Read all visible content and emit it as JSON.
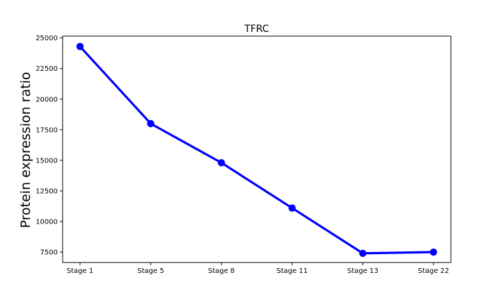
{
  "chart_data": {
    "type": "line",
    "title": "TFRC",
    "xlabel": "",
    "ylabel": "Protein expression ratio",
    "categories": [
      "Stage 1",
      "Stage 5",
      "Stage 8",
      "Stage 11",
      "Stage 13",
      "Stage 22"
    ],
    "series": [
      {
        "values": [
          24300,
          18000,
          14800,
          11100,
          7400,
          7500
        ]
      }
    ],
    "ylim": [
      6650,
      25150
    ],
    "yticks": [
      7500,
      10000,
      12500,
      15000,
      17500,
      20000,
      22500,
      25000
    ],
    "grid": false,
    "colors": {
      "line": "#0000ff",
      "marker": "#0000ff"
    }
  }
}
